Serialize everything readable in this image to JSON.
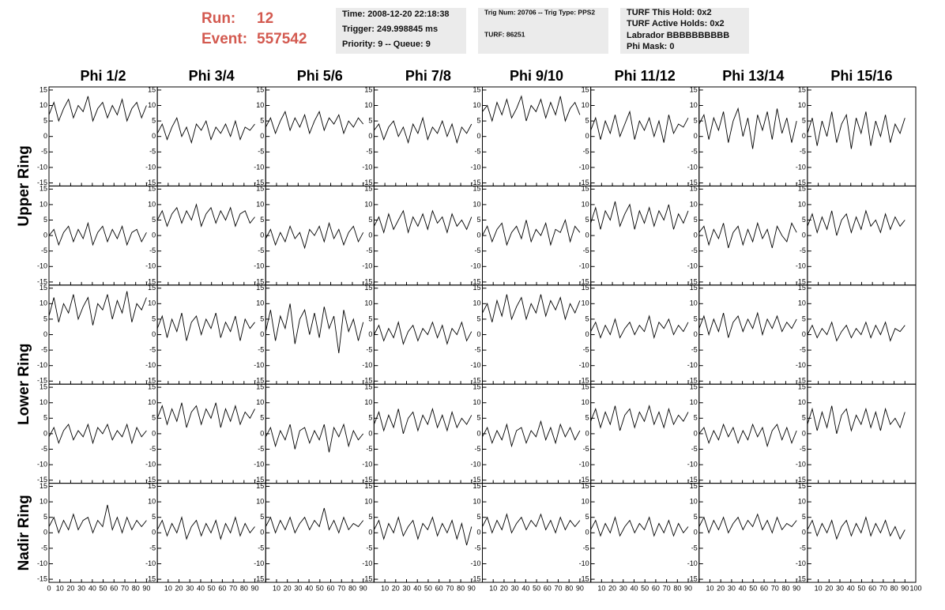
{
  "header": {
    "run_label": "Run:",
    "run": 12,
    "event_label": "Event:",
    "event": 557542,
    "box1": [
      "Time: 2008-12-20 22:18:38",
      "Trigger: 249.998845 ms",
      "Priority: 9 -- Queue: 9"
    ],
    "box2": [
      "Trig Num: 20706 -- Trig Type: PPS2",
      "TURF: 86251"
    ],
    "box3": [
      "TURF This Hold: 0x2",
      "TURF Active Holds: 0x2",
      "Labrador BBBBBBBBBB",
      "Phi Mask: 0"
    ]
  },
  "chart_data": {
    "type": "line",
    "columns": [
      "Phi 1/2",
      "Phi 3/4",
      "Phi 5/6",
      "Phi 7/8",
      "Phi 9/10",
      "Phi 11/12",
      "Phi 13/14",
      "Phi 15/16"
    ],
    "ring_labels": [
      "Upper Ring",
      "Lower Ring",
      "Nadir Ring"
    ],
    "xlim": [
      0,
      100
    ],
    "xticks": [
      0,
      10,
      20,
      30,
      40,
      50,
      60,
      70,
      80,
      90,
      100
    ],
    "ylim": [
      -16,
      16
    ],
    "yticks": [
      -15,
      -10,
      -5,
      0,
      5,
      10,
      15
    ],
    "x": [
      0,
      4.5,
      9,
      13.5,
      18,
      22.5,
      27,
      31.5,
      36,
      40.5,
      45,
      49.5,
      54,
      58.5,
      63,
      67.5,
      72,
      76.5,
      81,
      85.5,
      90
    ],
    "series": [
      {
        "color": "#000000",
        "values": [
          7,
          11,
          5,
          9,
          12,
          6,
          10,
          8,
          13,
          5,
          9,
          11,
          6,
          10,
          7,
          12,
          5,
          9,
          11,
          6,
          10
        ]
      },
      {
        "color": "#000000",
        "values": [
          1,
          4,
          -1,
          3,
          6,
          0,
          3,
          -2,
          4,
          2,
          5,
          -1,
          3,
          1,
          4,
          0,
          5,
          -1,
          3,
          2,
          4
        ]
      },
      {
        "color": "#000000",
        "values": [
          3,
          6,
          1,
          5,
          8,
          2,
          6,
          3,
          7,
          1,
          5,
          8,
          2,
          6,
          4,
          7,
          1,
          5,
          3,
          6,
          4
        ]
      },
      {
        "color": "#000000",
        "values": [
          2,
          4,
          -1,
          3,
          5,
          0,
          3,
          -2,
          4,
          1,
          6,
          -1,
          3,
          1,
          5,
          0,
          4,
          -2,
          3,
          1,
          4
        ]
      },
      {
        "color": "#000000",
        "values": [
          8,
          10,
          5,
          11,
          7,
          12,
          6,
          9,
          13,
          5,
          10,
          8,
          12,
          6,
          11,
          7,
          13,
          5,
          9,
          11,
          7
        ]
      },
      {
        "color": "#000000",
        "values": [
          2,
          6,
          -1,
          5,
          1,
          7,
          0,
          4,
          8,
          -1,
          5,
          2,
          6,
          0,
          5,
          -2,
          7,
          1,
          4,
          3,
          6
        ]
      },
      {
        "color": "#000000",
        "values": [
          4,
          7,
          -1,
          6,
          2,
          8,
          -2,
          5,
          9,
          0,
          6,
          -4,
          7,
          2,
          8,
          -1,
          9,
          1,
          6,
          -2,
          5
        ]
      },
      {
        "color": "#000000",
        "values": [
          1,
          6,
          -3,
          5,
          0,
          8,
          -2,
          4,
          7,
          -4,
          6,
          1,
          8,
          -3,
          5,
          0,
          7,
          -2,
          4,
          1,
          6
        ]
      },
      {
        "color": "#000000",
        "values": [
          0,
          2,
          -3,
          1,
          3,
          -2,
          2,
          -1,
          4,
          -3,
          1,
          3,
          -2,
          2,
          -1,
          3,
          -3,
          1,
          2,
          -2,
          1
        ]
      },
      {
        "color": "#000000",
        "values": [
          5,
          8,
          3,
          7,
          9,
          4,
          8,
          5,
          10,
          3,
          7,
          9,
          4,
          8,
          5,
          9,
          3,
          7,
          8,
          4,
          6
        ]
      },
      {
        "color": "#000000",
        "values": [
          -1,
          2,
          -3,
          1,
          -2,
          3,
          -1,
          1,
          -4,
          2,
          0,
          3,
          -2,
          4,
          -1,
          2,
          -3,
          1,
          3,
          -2,
          1
        ]
      },
      {
        "color": "#000000",
        "values": [
          3,
          6,
          1,
          7,
          2,
          5,
          8,
          1,
          6,
          3,
          7,
          2,
          8,
          4,
          6,
          1,
          7,
          3,
          5,
          2,
          6
        ]
      },
      {
        "color": "#000000",
        "values": [
          0,
          3,
          -2,
          2,
          4,
          -3,
          1,
          3,
          -1,
          5,
          -2,
          2,
          0,
          4,
          -3,
          2,
          1,
          5,
          -2,
          3,
          1
        ]
      },
      {
        "color": "#000000",
        "values": [
          4,
          9,
          2,
          8,
          5,
          11,
          3,
          7,
          10,
          2,
          8,
          4,
          9,
          3,
          8,
          5,
          10,
          2,
          7,
          4,
          8
        ]
      },
      {
        "color": "#000000",
        "values": [
          1,
          3,
          -3,
          2,
          -1,
          4,
          -4,
          1,
          3,
          -3,
          2,
          -2,
          4,
          -1,
          2,
          -4,
          3,
          0,
          -2,
          4,
          1
        ]
      },
      {
        "color": "#000000",
        "values": [
          3,
          7,
          1,
          6,
          2,
          8,
          0,
          5,
          7,
          1,
          6,
          2,
          8,
          3,
          5,
          1,
          7,
          2,
          6,
          3,
          5
        ]
      },
      {
        "color": "#000000",
        "values": [
          6,
          12,
          4,
          10,
          7,
          13,
          5,
          9,
          12,
          3,
          10,
          8,
          13,
          5,
          11,
          7,
          14,
          4,
          10,
          8,
          12
        ]
      },
      {
        "color": "#000000",
        "values": [
          2,
          6,
          -1,
          5,
          1,
          7,
          -2,
          4,
          6,
          0,
          5,
          2,
          7,
          -1,
          4,
          1,
          6,
          -2,
          5,
          2,
          4
        ]
      },
      {
        "color": "#000000",
        "values": [
          1,
          8,
          -2,
          6,
          2,
          10,
          -3,
          5,
          8,
          0,
          7,
          -1,
          9,
          2,
          6,
          -6,
          8,
          1,
          5,
          -2,
          4
        ]
      },
      {
        "color": "#000000",
        "values": [
          0,
          3,
          -2,
          2,
          -1,
          4,
          -3,
          1,
          3,
          -2,
          2,
          0,
          4,
          -1,
          3,
          -3,
          2,
          0,
          4,
          -2,
          1
        ]
      },
      {
        "color": "#000000",
        "values": [
          7,
          10,
          4,
          11,
          6,
          13,
          5,
          9,
          12,
          5,
          10,
          7,
          13,
          6,
          11,
          8,
          12,
          5,
          10,
          7,
          11
        ]
      },
      {
        "color": "#000000",
        "values": [
          1,
          4,
          -1,
          3,
          0,
          5,
          -1,
          2,
          4,
          0,
          3,
          1,
          6,
          -1,
          4,
          2,
          5,
          0,
          3,
          1,
          4
        ]
      },
      {
        "color": "#000000",
        "values": [
          2,
          6,
          0,
          5,
          1,
          7,
          -1,
          4,
          6,
          1,
          5,
          2,
          7,
          0,
          5,
          2,
          6,
          1,
          4,
          2,
          5
        ]
      },
      {
        "color": "#000000",
        "values": [
          0,
          3,
          -1,
          2,
          0,
          4,
          -2,
          1,
          3,
          -1,
          2,
          0,
          4,
          -1,
          3,
          0,
          4,
          -2,
          2,
          1,
          3
        ]
      },
      {
        "color": "#000000",
        "values": [
          -1,
          2,
          -3,
          1,
          3,
          -2,
          1,
          -1,
          3,
          -3,
          2,
          0,
          3,
          -2,
          1,
          -1,
          3,
          -3,
          2,
          -1,
          1
        ]
      },
      {
        "color": "#000000",
        "values": [
          5,
          9,
          3,
          8,
          4,
          10,
          2,
          7,
          9,
          3,
          8,
          5,
          10,
          2,
          8,
          4,
          9,
          3,
          7,
          5,
          8
        ]
      },
      {
        "color": "#000000",
        "values": [
          -1,
          2,
          -4,
          1,
          -2,
          3,
          -5,
          1,
          2,
          -3,
          1,
          -2,
          3,
          -6,
          2,
          -1,
          3,
          -4,
          1,
          -2,
          0
        ]
      },
      {
        "color": "#000000",
        "values": [
          3,
          7,
          1,
          6,
          2,
          8,
          0,
          5,
          7,
          1,
          6,
          3,
          8,
          2,
          6,
          1,
          7,
          2,
          5,
          3,
          6
        ]
      },
      {
        "color": "#000000",
        "values": [
          -1,
          2,
          -3,
          1,
          -2,
          3,
          -4,
          1,
          2,
          -3,
          1,
          -1,
          4,
          -2,
          2,
          -3,
          3,
          -1,
          2,
          -2,
          1
        ]
      },
      {
        "color": "#000000",
        "values": [
          4,
          8,
          2,
          7,
          3,
          9,
          1,
          6,
          8,
          2,
          7,
          4,
          9,
          3,
          7,
          2,
          8,
          3,
          6,
          4,
          7
        ]
      },
      {
        "color": "#000000",
        "values": [
          0,
          2,
          -3,
          1,
          -2,
          3,
          -1,
          2,
          -3,
          1,
          -2,
          3,
          -1,
          2,
          -4,
          1,
          3,
          -2,
          2,
          -3,
          1
        ]
      },
      {
        "color": "#000000",
        "values": [
          3,
          8,
          1,
          7,
          2,
          9,
          0,
          6,
          8,
          1,
          6,
          3,
          8,
          2,
          7,
          1,
          8,
          3,
          5,
          2,
          7
        ]
      },
      {
        "color": "#000000",
        "values": [
          2,
          5,
          0,
          4,
          1,
          6,
          1,
          4,
          5,
          0,
          4,
          2,
          9,
          1,
          5,
          0,
          5,
          1,
          4,
          2,
          4
        ]
      },
      {
        "color": "#000000",
        "values": [
          1,
          4,
          -1,
          3,
          0,
          5,
          -2,
          2,
          4,
          -1,
          3,
          0,
          4,
          -2,
          3,
          0,
          5,
          -1,
          3,
          0,
          2
        ]
      },
      {
        "color": "#000000",
        "values": [
          2,
          5,
          0,
          4,
          1,
          5,
          0,
          3,
          5,
          1,
          4,
          2,
          8,
          1,
          4,
          0,
          5,
          1,
          3,
          2,
          4
        ]
      },
      {
        "color": "#000000",
        "values": [
          1,
          4,
          -2,
          3,
          0,
          5,
          -1,
          2,
          4,
          -2,
          3,
          1,
          5,
          -1,
          3,
          0,
          4,
          -2,
          3,
          -4,
          2
        ]
      },
      {
        "color": "#000000",
        "values": [
          2,
          5,
          0,
          4,
          1,
          6,
          0,
          3,
          5,
          1,
          4,
          2,
          6,
          1,
          4,
          0,
          5,
          1,
          4,
          2,
          4
        ]
      },
      {
        "color": "#000000",
        "values": [
          1,
          4,
          -1,
          3,
          0,
          5,
          -1,
          2,
          4,
          0,
          3,
          1,
          5,
          -1,
          3,
          0,
          4,
          -1,
          3,
          0,
          2
        ]
      },
      {
        "color": "#000000",
        "values": [
          2,
          5,
          0,
          4,
          1,
          5,
          0,
          3,
          5,
          1,
          4,
          2,
          6,
          1,
          4,
          0,
          5,
          1,
          3,
          2,
          4
        ]
      },
      {
        "color": "#000000",
        "values": [
          1,
          4,
          -1,
          3,
          0,
          4,
          -2,
          2,
          4,
          -1,
          3,
          0,
          5,
          -1,
          3,
          0,
          4,
          -1,
          2,
          -2,
          1
        ]
      }
    ]
  }
}
